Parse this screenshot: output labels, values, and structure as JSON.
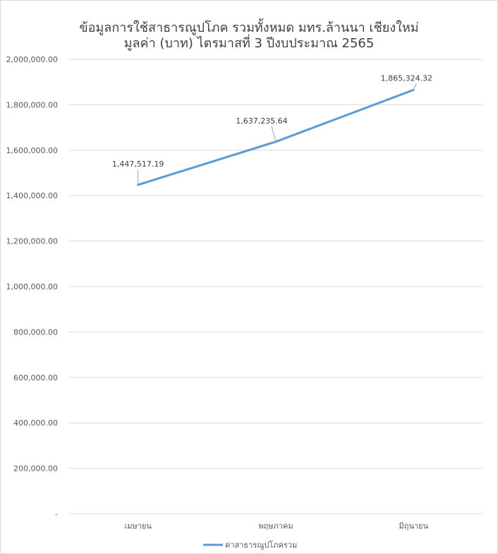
{
  "chart_data": {
    "type": "line",
    "title_lines": [
      "ข้อมูลการใช้สาธารณูปโภค รวมทั้งหมด มทร.ล้านนา เชียงใหม่",
      "มูลค่า (บาท) ไตรมาสที่ 3 ปีงบประมาณ 2565"
    ],
    "categories": [
      "เมษายน",
      "พฤษภาคม",
      "มิถุนายน"
    ],
    "series": [
      {
        "name": "ค่าสาธารณูปโภครวม",
        "values": [
          1447517.19,
          1637235.64,
          1865324.32
        ],
        "labels": [
          "1,447,517.19",
          "1,637,235.64",
          "1,865,324.32"
        ],
        "color": "#5b9bd5"
      }
    ],
    "y_ticks": [
      {
        "value": 0,
        "label": "-"
      },
      {
        "value": 200000,
        "label": "200,000.00"
      },
      {
        "value": 400000,
        "label": "400,000.00"
      },
      {
        "value": 600000,
        "label": "600,000.00"
      },
      {
        "value": 800000,
        "label": "800,000.00"
      },
      {
        "value": 1000000,
        "label": "1,000,000.00"
      },
      {
        "value": 1200000,
        "label": "1,200,000.00"
      },
      {
        "value": 1400000,
        "label": "1,400,000.00"
      },
      {
        "value": 1600000,
        "label": "1,600,000.00"
      },
      {
        "value": 1800000,
        "label": "1,800,000.00"
      },
      {
        "value": 2000000,
        "label": "2,000,000.00"
      }
    ],
    "ylim": [
      0,
      2000000
    ],
    "grid": true,
    "legend_position": "bottom",
    "gridline_color": "#d9d9d9",
    "text_color": "#595959"
  }
}
